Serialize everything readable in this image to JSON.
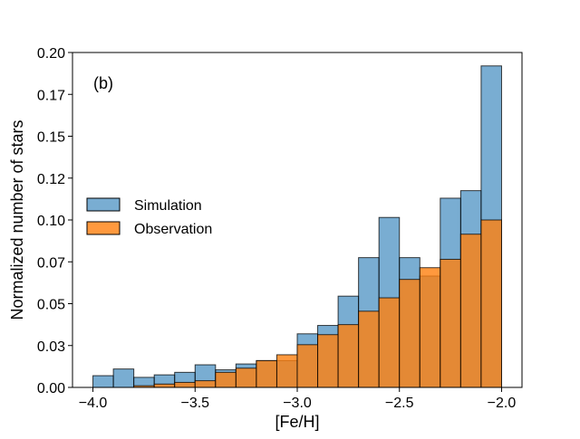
{
  "chart_data": {
    "type": "bar",
    "subtype": "overlaid histogram",
    "panel_label": "(b)",
    "xlabel": "[Fe/H]",
    "ylabel": "Normalized number of stars",
    "xlim": [
      -4.1,
      -1.9
    ],
    "ylim": [
      0,
      0.2
    ],
    "xticks": [
      -4.0,
      -3.5,
      -3.0,
      -2.5,
      -2.0
    ],
    "xtick_labels": [
      "−4.0",
      "−3.5",
      "−3.0",
      "−2.5",
      "−2.0"
    ],
    "yticks": [
      0.0,
      0.025,
      0.05,
      0.075,
      0.1,
      0.125,
      0.15,
      0.175,
      0.2
    ],
    "ytick_labels": [
      "0.00",
      "0.03",
      "0.05",
      "0.07",
      "0.10",
      "0.12",
      "0.15",
      "0.17",
      "0.20"
    ],
    "bin_edges": [
      -4.0,
      -3.9,
      -3.8,
      -3.7,
      -3.6,
      -3.5,
      -3.4,
      -3.3,
      -3.2,
      -3.1,
      -3.0,
      -2.9,
      -2.8,
      -2.7,
      -2.6,
      -2.5,
      -2.4,
      -2.3,
      -2.2,
      -2.1,
      -2.0
    ],
    "legend_position": "center-left",
    "series": [
      {
        "name": "Simulation",
        "color": "#1f77b4",
        "values": [
          0.007,
          0.011,
          0.006,
          0.0075,
          0.009,
          0.0135,
          0.0105,
          0.014,
          0.016,
          0.016,
          0.032,
          0.037,
          0.0545,
          0.0775,
          0.1015,
          0.0775,
          0.0665,
          0.113,
          0.1175,
          0.192
        ]
      },
      {
        "name": "Observation",
        "color": "#ff7f0e",
        "values": [
          0.0,
          0.0,
          0.001,
          0.002,
          0.003,
          0.004,
          0.009,
          0.0115,
          0.016,
          0.0195,
          0.0255,
          0.0315,
          0.0375,
          0.0455,
          0.0535,
          0.0645,
          0.0715,
          0.0765,
          0.0915,
          0.1
        ]
      }
    ]
  }
}
